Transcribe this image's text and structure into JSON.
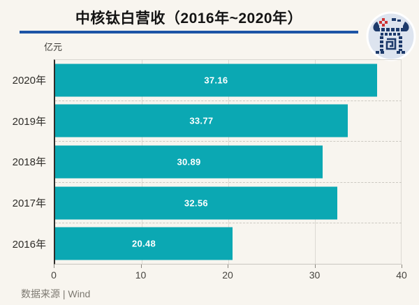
{
  "header": {
    "title": "中核钛白营收（2016年~2020年）"
  },
  "logo": {
    "name": "pixel-gate-badge"
  },
  "footer": {
    "source": "数据来源 | Wind"
  },
  "colors": {
    "background": "#f8f5ef",
    "bar": "#0ba8b3",
    "title_underline": "#1d54a6",
    "value_text": "#ffffff"
  },
  "chart_data": {
    "type": "bar",
    "orientation": "horizontal",
    "title": "中核钛白营收（2016年~2020年）",
    "unit_label": "亿元",
    "categories": [
      "2020年",
      "2019年",
      "2018年",
      "2017年",
      "2016年"
    ],
    "values": [
      37.16,
      33.77,
      30.89,
      32.56,
      20.48
    ],
    "value_labels": [
      "37.16",
      "33.77",
      "30.89",
      "32.56",
      "20.48"
    ],
    "xlim": [
      0,
      40
    ],
    "xticks": [
      0,
      10,
      20,
      30,
      40
    ],
    "grid": true,
    "legend": "none",
    "source": "数据来源 | Wind"
  }
}
